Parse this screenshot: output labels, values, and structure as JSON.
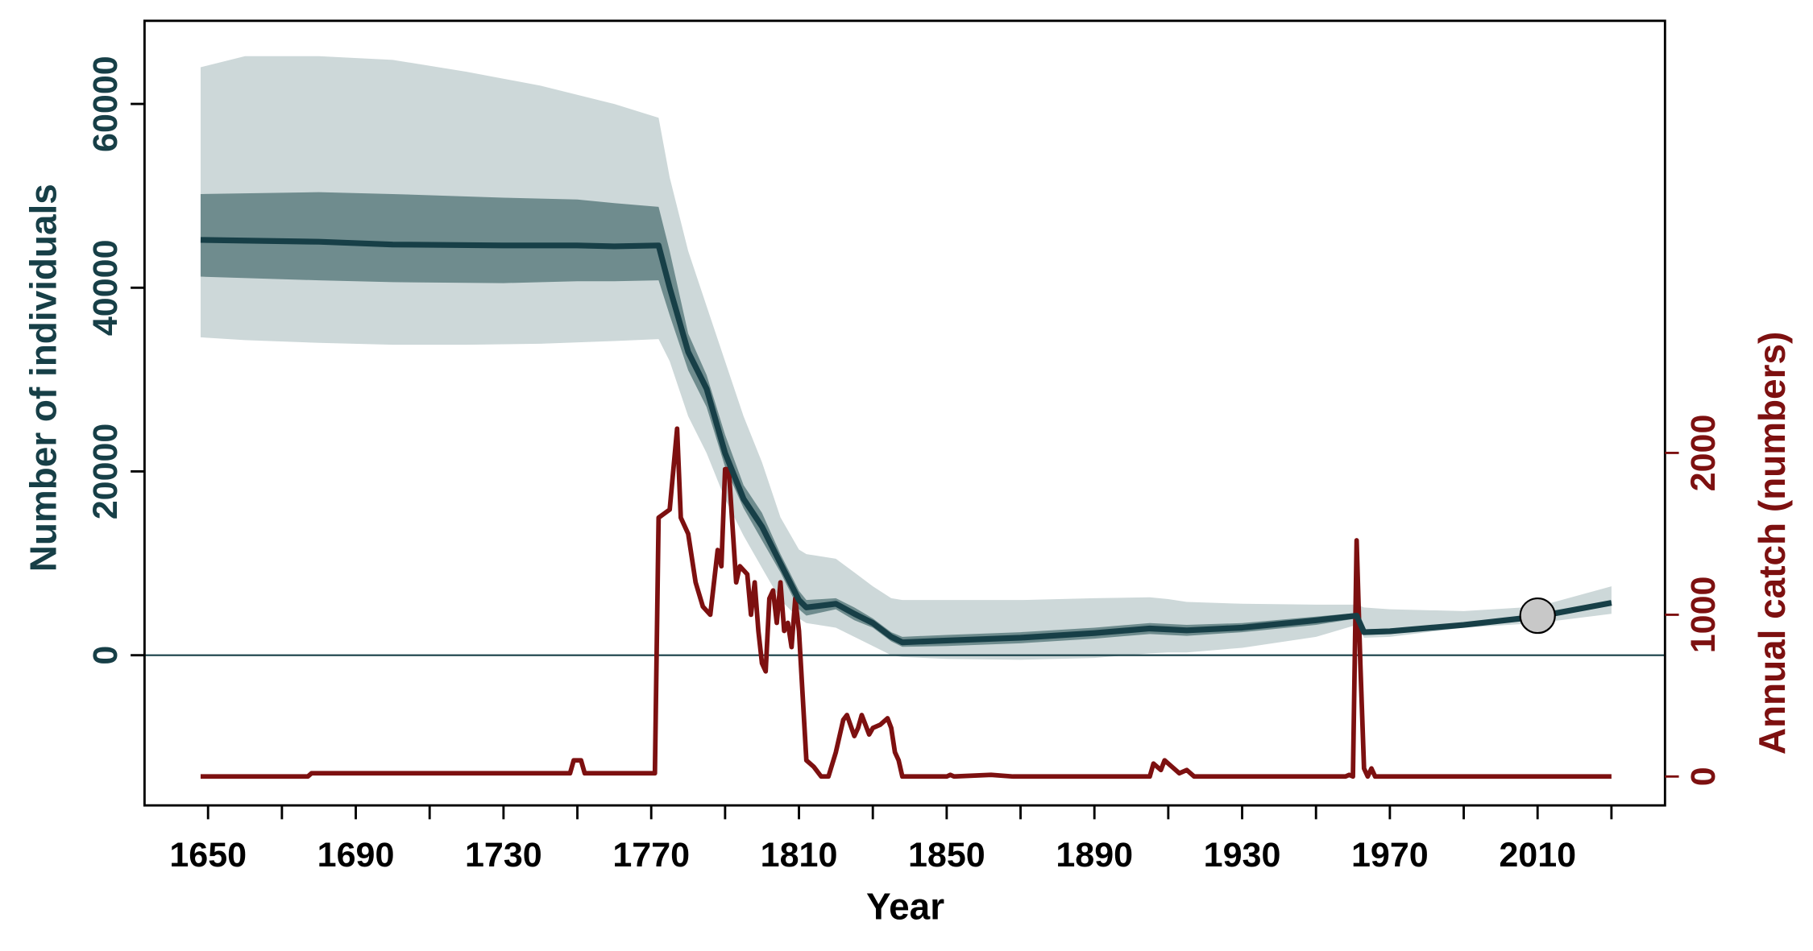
{
  "chart_data": {
    "type": "line",
    "x_label": "Year",
    "y_label": "Number of individuals",
    "y2_label": "Annual catch (numbers)",
    "xlim": [
      1632.8,
      2044.5
    ],
    "xticks": [
      1650,
      1690,
      1730,
      1770,
      1810,
      1850,
      1890,
      1930,
      1970,
      2010
    ],
    "xtick_marks": [
      1650,
      1670,
      1690,
      1710,
      1730,
      1750,
      1770,
      1790,
      1810,
      1830,
      1850,
      1870,
      1890,
      1910,
      1930,
      1950,
      1970,
      1990,
      2010,
      2030
    ],
    "ylim": [
      -16350,
      69050
    ],
    "yticks": [
      0,
      20000,
      40000,
      60000
    ],
    "y2lim": [
      -178.6,
      4671
    ],
    "y2ticks": [
      0,
      1000,
      2000
    ],
    "zero_line": 0,
    "y_color": "#173f47",
    "y2_color": "#7d1010",
    "bands": [
      {
        "color": "#cdd8d9",
        "x": [
          1648,
          1660,
          1680,
          1700,
          1720,
          1740,
          1760,
          1772,
          1775,
          1780,
          1785,
          1790,
          1795,
          1800,
          1805,
          1810,
          1812,
          1820,
          1825,
          1830,
          1835,
          1838,
          1850,
          1870,
          1890,
          1905,
          1910,
          1915,
          1930,
          1950,
          1961,
          1963,
          1970,
          1990,
          2010,
          2030
        ],
        "upper": [
          64000,
          65200,
          65200,
          64800,
          63500,
          62000,
          60000,
          58500,
          52000,
          44000,
          38000,
          32000,
          26000,
          21000,
          15000,
          11500,
          11000,
          10500,
          9000,
          7500,
          6200,
          6000,
          6000,
          6000,
          6200,
          6300,
          6100,
          5800,
          5600,
          5500,
          5500,
          5200,
          5000,
          4800,
          5300,
          7500
        ],
        "lower": [
          34600,
          34300,
          34000,
          33800,
          33800,
          33900,
          34200,
          34400,
          32000,
          26000,
          22000,
          17000,
          13000,
          9500,
          6000,
          4000,
          3500,
          3000,
          2000,
          1000,
          0,
          -200,
          -400,
          -500,
          -300,
          200,
          300,
          300,
          800,
          2000,
          3300,
          1900,
          2000,
          3000,
          3500,
          4500
        ]
      },
      {
        "color": "#6f8c8e",
        "x": [
          1648,
          1680,
          1700,
          1730,
          1750,
          1760,
          1772,
          1775,
          1780,
          1785,
          1790,
          1795,
          1800,
          1805,
          1810,
          1812,
          1820,
          1825,
          1830,
          1835,
          1838,
          1850,
          1870,
          1890,
          1905,
          1910,
          1915,
          1930,
          1950,
          1961,
          1963,
          1970,
          1990,
          2010,
          2030
        ],
        "upper": [
          50200,
          50400,
          50200,
          49800,
          49600,
          49200,
          48800,
          44000,
          35000,
          30500,
          24000,
          18500,
          15500,
          11000,
          7000,
          6000,
          6200,
          5200,
          4000,
          2500,
          2000,
          2200,
          2500,
          3000,
          3500,
          3400,
          3300,
          3500,
          4200,
          4600,
          2800,
          2900,
          3500,
          4400,
          5900
        ],
        "lower": [
          41200,
          40800,
          40600,
          40500,
          40700,
          40700,
          40800,
          37000,
          31000,
          27000,
          20500,
          16000,
          12500,
          9000,
          5000,
          4300,
          5000,
          3800,
          3000,
          1500,
          900,
          1000,
          1300,
          1800,
          2300,
          2200,
          2100,
          2500,
          3300,
          4000,
          2200,
          2300,
          3100,
          4000,
          5500
        ]
      }
    ],
    "series": [
      {
        "color": "#173f47",
        "axis": "y",
        "x": [
          1648,
          1680,
          1700,
          1730,
          1750,
          1760,
          1772,
          1775,
          1780,
          1785,
          1790,
          1795,
          1800,
          1805,
          1810,
          1812,
          1820,
          1825,
          1830,
          1835,
          1838,
          1850,
          1870,
          1890,
          1905,
          1910,
          1915,
          1930,
          1950,
          1961,
          1963,
          1970,
          1990,
          2010,
          2030
        ],
        "values": [
          45200,
          45000,
          44700,
          44600,
          44600,
          44500,
          44600,
          40000,
          33000,
          29000,
          22000,
          17000,
          14000,
          10000,
          6000,
          5200,
          5600,
          4500,
          3500,
          2000,
          1400,
          1600,
          1900,
          2400,
          2900,
          2800,
          2700,
          3000,
          3800,
          4300,
          2500,
          2600,
          3300,
          4200,
          5700
        ]
      },
      {
        "color": "#7d1010",
        "axis": "y2",
        "x": [
          1648,
          1677,
          1678,
          1748,
          1749,
          1751,
          1752,
          1771,
          1772,
          1775,
          1777,
          1778,
          1780,
          1782,
          1784,
          1786,
          1788,
          1789,
          1790,
          1791,
          1793,
          1794,
          1796,
          1797,
          1798,
          1799,
          1800,
          1801,
          1802,
          1803,
          1804,
          1805,
          1806,
          1807,
          1808,
          1809,
          1810,
          1811,
          1812,
          1814,
          1816,
          1818,
          1820,
          1822,
          1823,
          1825,
          1826,
          1827,
          1829,
          1830,
          1832,
          1834,
          1835,
          1836,
          1837,
          1838,
          1850,
          1851,
          1852,
          1862,
          1868,
          1905,
          1906,
          1908,
          1909,
          1911,
          1913,
          1915,
          1917,
          1950,
          1958,
          1959,
          1960,
          1961,
          1962,
          1963,
          1964,
          1965,
          1966,
          2030
        ],
        "values": [
          0,
          0,
          20,
          20,
          100,
          100,
          20,
          20,
          1600,
          1650,
          2150,
          1600,
          1500,
          1200,
          1050,
          1000,
          1400,
          1300,
          1900,
          1900,
          1200,
          1300,
          1250,
          1000,
          1200,
          900,
          700,
          650,
          1100,
          1150,
          950,
          1200,
          900,
          950,
          800,
          1100,
          900,
          500,
          100,
          60,
          0,
          0,
          150,
          350,
          380,
          250,
          300,
          380,
          260,
          300,
          320,
          360,
          300,
          150,
          100,
          0,
          0,
          10,
          0,
          10,
          0,
          0,
          80,
          40,
          100,
          60,
          20,
          40,
          0,
          0,
          0,
          10,
          0,
          1460,
          700,
          50,
          0,
          50,
          0,
          0
        ]
      }
    ],
    "point": {
      "x": 2010,
      "y": 4300,
      "color": "#c8c8c8"
    }
  }
}
